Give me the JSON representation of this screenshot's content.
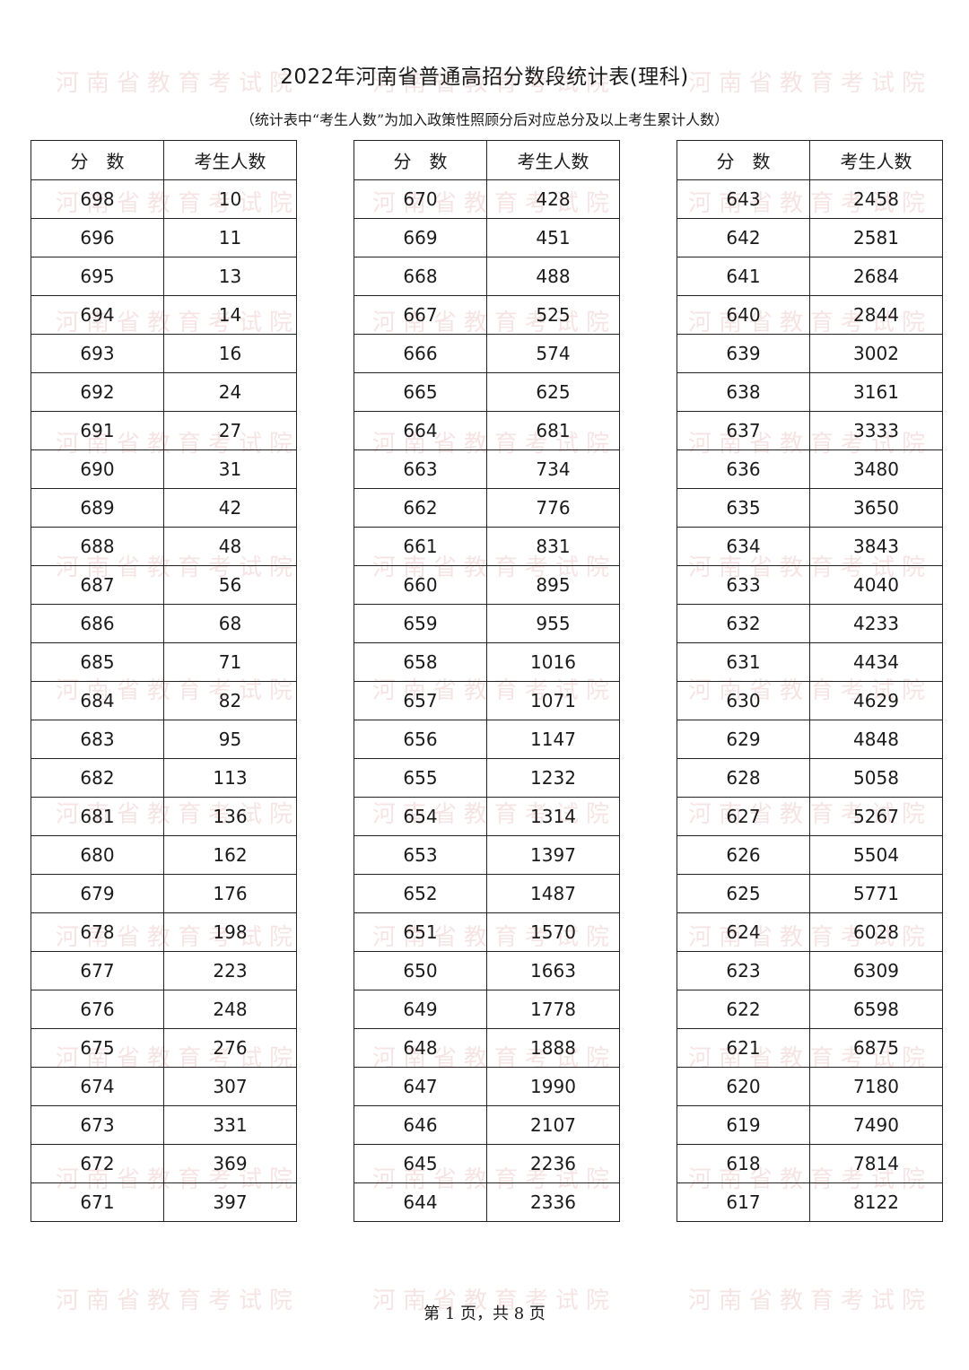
{
  "title": "2022年河南省普通高招分数段统计表(理科)",
  "subtitle": "（统计表中“考生人数”为加入政策性照顾分后对应总分及以上考生累计人数）",
  "headers": {
    "score": "分　数",
    "count": "考生人数"
  },
  "watermark": "河南省教育考试院",
  "tables": [
    {
      "scores": [
        698,
        696,
        695,
        694,
        693,
        692,
        691,
        690,
        689,
        688,
        687,
        686,
        685,
        684,
        683,
        682,
        681,
        680,
        679,
        678,
        677,
        676,
        675,
        674,
        673,
        672,
        671
      ],
      "counts": [
        10,
        11,
        13,
        14,
        16,
        24,
        27,
        31,
        42,
        48,
        56,
        68,
        71,
        82,
        95,
        113,
        136,
        162,
        176,
        198,
        223,
        248,
        276,
        307,
        331,
        369,
        397
      ]
    },
    {
      "scores": [
        670,
        669,
        668,
        667,
        666,
        665,
        664,
        663,
        662,
        661,
        660,
        659,
        658,
        657,
        656,
        655,
        654,
        653,
        652,
        651,
        650,
        649,
        648,
        647,
        646,
        645,
        644
      ],
      "counts": [
        428,
        451,
        488,
        525,
        574,
        625,
        681,
        734,
        776,
        831,
        895,
        955,
        1016,
        1071,
        1147,
        1232,
        1314,
        1397,
        1487,
        1570,
        1663,
        1778,
        1888,
        1990,
        2107,
        2236,
        2336
      ]
    },
    {
      "scores": [
        643,
        642,
        641,
        640,
        639,
        638,
        637,
        636,
        635,
        634,
        633,
        632,
        631,
        630,
        629,
        628,
        627,
        626,
        625,
        624,
        623,
        622,
        621,
        620,
        619,
        618,
        617
      ],
      "counts": [
        2458,
        2581,
        2684,
        2844,
        3002,
        3161,
        3333,
        3480,
        3650,
        3843,
        4040,
        4233,
        4434,
        4629,
        4848,
        5058,
        5267,
        5504,
        5771,
        6028,
        6309,
        6598,
        6875,
        7180,
        7490,
        7814,
        8122
      ]
    }
  ],
  "footer": "第 1 页，共 8 页"
}
